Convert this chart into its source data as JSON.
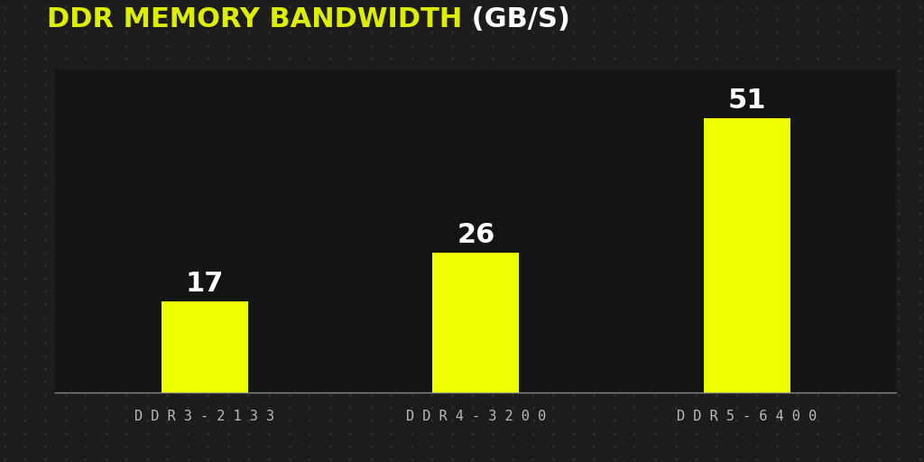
{
  "title_part1": "DDR MEMORY BANDWIDTH",
  "title_part2": " (GB/S)",
  "categories": [
    "D D R 3 - 2 1 3 3",
    "D D R 4 - 3 2 0 0",
    "D D R 5 - 6 4 0 0"
  ],
  "values": [
    17,
    26,
    51
  ],
  "bar_color": "#EEFF00",
  "bar_label_color": "#FFFFFF",
  "bar_label_fontsize": 22,
  "title_color1": "#DDEE00",
  "title_color2": "#FFFFFF",
  "title_fontsize": 22,
  "tick_label_color": "#BBBBBB",
  "tick_label_fontsize": 11,
  "background_color": "#1c1c1c",
  "plot_background_color": "#141414",
  "axes_line_color": "#888888",
  "ylim": [
    0,
    60
  ],
  "bar_width": 0.32,
  "xlim": [
    -0.55,
    2.55
  ]
}
